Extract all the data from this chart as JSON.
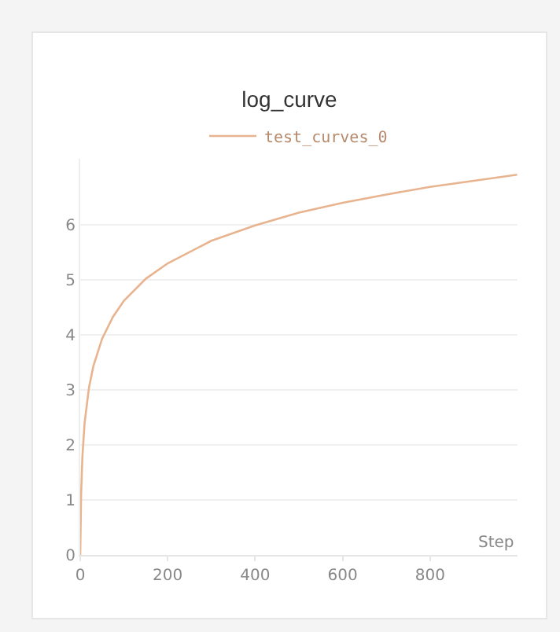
{
  "chart_data": {
    "type": "line",
    "title": "log_curve",
    "xlabel": "Step",
    "x": [
      0,
      2,
      5,
      10,
      20,
      30,
      50,
      75,
      100,
      150,
      200,
      300,
      400,
      500,
      600,
      700,
      800,
      900,
      999
    ],
    "series": [
      {
        "name": "test_curves_0",
        "color": "#e8b48f",
        "values": [
          0,
          1.1,
          1.79,
          2.4,
          3.04,
          3.43,
          3.93,
          4.33,
          4.62,
          5.02,
          5.3,
          5.71,
          5.99,
          6.22,
          6.4,
          6.55,
          6.69,
          6.8,
          6.91
        ]
      }
    ],
    "xlim": [
      0,
      1000
    ],
    "xticks": [
      0,
      200,
      400,
      600,
      800
    ],
    "ylim": [
      0,
      7.2
    ],
    "yticks": [
      0,
      1,
      2,
      3,
      4,
      5,
      6
    ],
    "grid": "y",
    "legend": "top",
    "line_style": "solid"
  }
}
